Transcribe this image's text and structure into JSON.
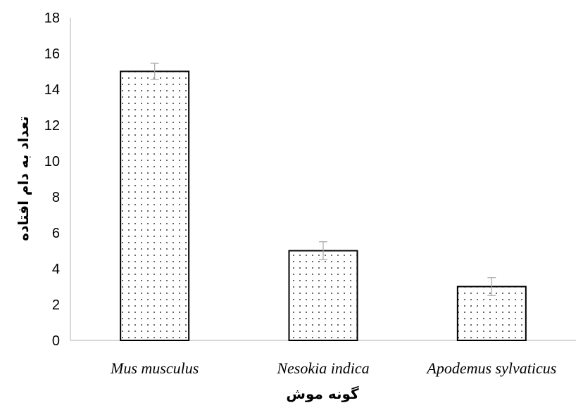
{
  "chart_data": {
    "type": "bar",
    "categories": [
      "Mus musculus",
      "Nesokia indica",
      "Apodemus sylvaticus"
    ],
    "values": [
      15,
      5,
      3
    ],
    "error": [
      0.45,
      0.5,
      0.5
    ],
    "xlabel": "گونه موش",
    "ylabel": "تعداد به دام افتاده",
    "ylim": [
      0,
      18
    ],
    "yticks": [
      0,
      2,
      4,
      6,
      8,
      10,
      12,
      14,
      16,
      18
    ],
    "grid": false,
    "legend": "none",
    "colors": {
      "bar_fill": "#ffffff",
      "bar_stroke": "#000000",
      "dot": "#000000",
      "axis": "#bfbfbf",
      "error_bar": "#a6a6a6"
    }
  }
}
